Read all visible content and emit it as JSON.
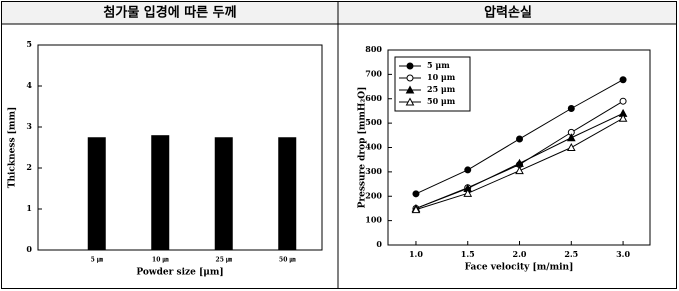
{
  "chart_data": [
    {
      "type": "bar",
      "title": "첨가물 입경에 따른 두께",
      "categories": [
        "5 ㎛",
        "10 ㎛",
        "25 ㎛",
        "50 ㎛"
      ],
      "values": [
        2.75,
        2.8,
        2.75,
        2.75
      ],
      "color": "#000000",
      "xlabel": "Powder size [μm]",
      "ylabel": "Thickness [mm]",
      "ylim": [
        0,
        5
      ],
      "yticks": [
        0,
        1,
        2,
        3,
        4,
        5
      ],
      "grid": false
    },
    {
      "type": "line",
      "title": "압력손실",
      "x": [
        1.0,
        1.5,
        2.0,
        2.5,
        3.0
      ],
      "xlabel": "Face velocity [m/min]",
      "ylabel": "Pressure drop [mmH₂O]",
      "xlim": [
        0.73,
        3.26
      ],
      "ylim": [
        0,
        800
      ],
      "xticks": [
        {
          "value": 1,
          "label": "1.0"
        },
        1.5,
        {
          "value": 2,
          "label": "2.0"
        },
        2.5,
        {
          "value": 3,
          "label": "3.0"
        }
      ],
      "yticks": [
        0,
        100,
        200,
        300,
        400,
        500,
        600,
        700,
        800
      ],
      "legend": "upper-left",
      "grid": false,
      "series": [
        {
          "name": "5 μm",
          "color": "#000000",
          "marker": "circle",
          "filled": true,
          "values": [
            210,
            308,
            435,
            560,
            678
          ]
        },
        {
          "name": "10 μm",
          "color": "#000000",
          "marker": "circle",
          "filled": false,
          "values": [
            150,
            235,
            330,
            462,
            590
          ]
        },
        {
          "name": "25 μm",
          "color": "#000000",
          "marker": "triangle",
          "filled": true,
          "values": [
            150,
            232,
            335,
            440,
            540
          ]
        },
        {
          "name": "50 μm",
          "color": "#000000",
          "marker": "triangle",
          "filled": false,
          "values": [
            145,
            212,
            305,
            400,
            520
          ]
        }
      ]
    }
  ]
}
